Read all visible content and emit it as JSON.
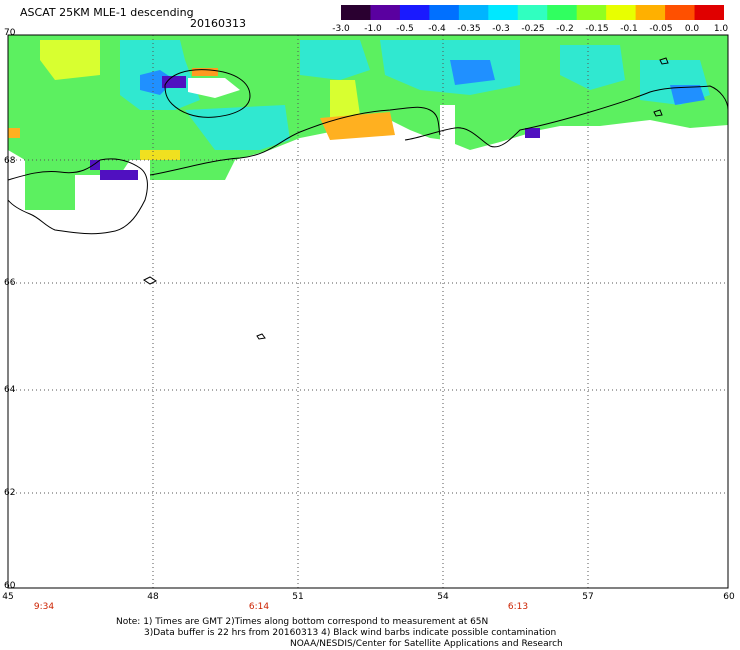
{
  "header": {
    "title": "ASCAT 25KM MLE-1 descending",
    "date": "20160313"
  },
  "colorbar": {
    "ticks": [
      "-3.0",
      "-1.0",
      "-0.5",
      "-0.4",
      "-0.35",
      "-0.3",
      "-0.25",
      "-0.2",
      "-0.15",
      "-0.1",
      "-0.05",
      "0.0",
      "1.0"
    ],
    "colors": [
      "#2a0030",
      "#5a00a0",
      "#1a1aff",
      "#0070ff",
      "#00b4ff",
      "#00e8ff",
      "#30ffc0",
      "#30ff60",
      "#90ff20",
      "#e8ff00",
      "#ffb000",
      "#ff5000",
      "#e00000"
    ]
  },
  "map": {
    "lat_labels": [
      "70",
      "68",
      "66",
      "64",
      "62",
      "60"
    ],
    "lon_labels": [
      "45",
      "48",
      "51",
      "54",
      "57",
      "60"
    ],
    "time_labels": [
      "9:34",
      "6:14",
      "6:13"
    ],
    "background": "#ffffff",
    "gridline_color": "#555555",
    "coast_color": "#000000"
  },
  "notes": {
    "line1": "Note:  1) Times are GMT  2)Times along bottom correspond to measurement at 65N",
    "line2": "3)Data buffer is 22 hrs from 20160313  4) Black wind barbs indicate possible contamination",
    "line3": "NOAA/NESDIS/Center for Satellite Applications and Research"
  }
}
